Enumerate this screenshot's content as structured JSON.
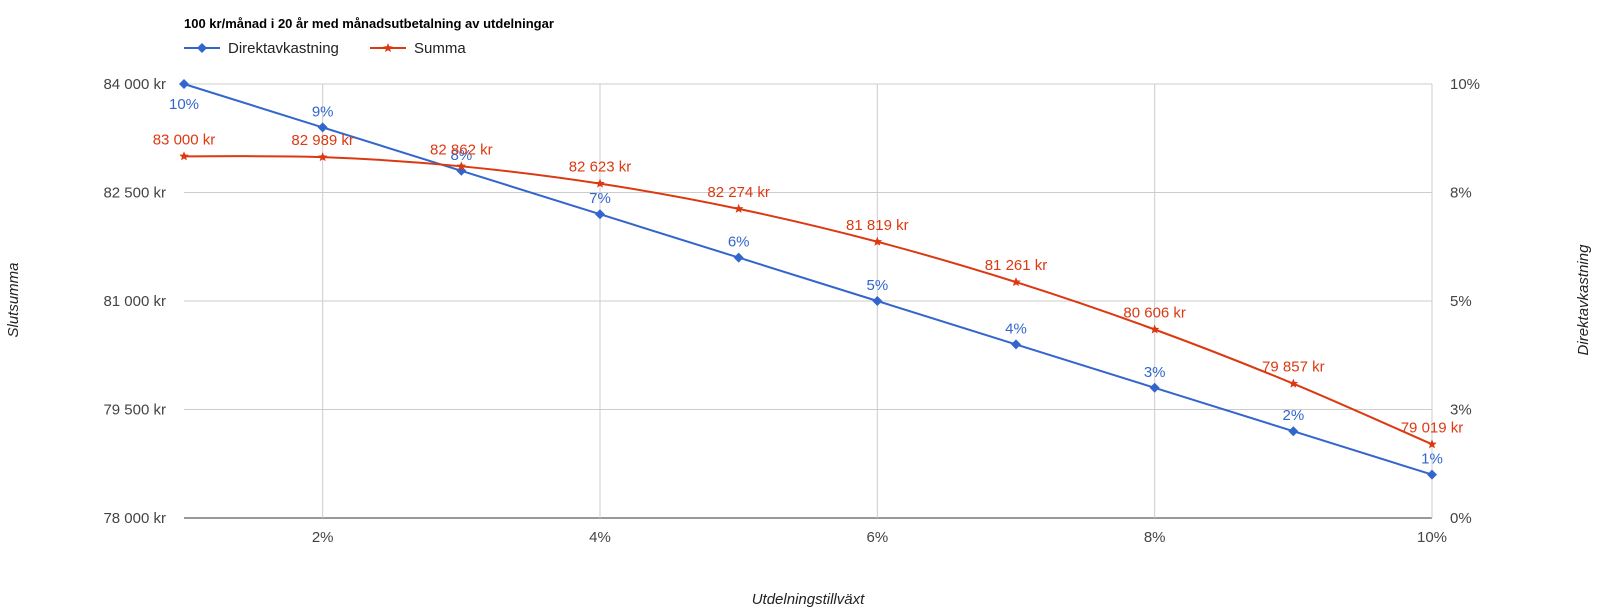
{
  "chart_data": {
    "type": "line",
    "title": "100 kr/månad i 20 år med månadsutbetalning av utdelningar",
    "xlabel": "Utdelningstillväxt",
    "ylabel_left": "Slutsumma",
    "ylabel_right": "Direktavkastning",
    "x": [
      1,
      2,
      3,
      4,
      5,
      6,
      7,
      8,
      9,
      10
    ],
    "xlim": [
      1,
      10
    ],
    "x_ticks": [
      2,
      4,
      6,
      8,
      10
    ],
    "x_tick_labels": [
      "2%",
      "4%",
      "6%",
      "8%",
      "10%"
    ],
    "ylim_left": [
      78000,
      84000
    ],
    "y_ticks_left": [
      78000,
      79500,
      81000,
      82500,
      84000
    ],
    "y_tick_labels_left": [
      "78 000 kr",
      "79 500 kr",
      "81 000 kr",
      "82 500 kr",
      "84 000 kr"
    ],
    "ylim_right": [
      0,
      10
    ],
    "y_ticks_right": [
      0,
      2.5,
      5,
      7.5,
      10
    ],
    "y_tick_labels_right": [
      "0%",
      "3%",
      "5%",
      "8%",
      "10%"
    ],
    "grid": true,
    "legend_position": "top-left",
    "series": [
      {
        "name": "Direktavkastning",
        "axis": "right",
        "color": "#3366cc",
        "marker": "diamond",
        "values": [
          10,
          9,
          8,
          7,
          6,
          5,
          4,
          3,
          2,
          1
        ],
        "labels": [
          "10%",
          "9%",
          "8%",
          "7%",
          "6%",
          "5%",
          "4%",
          "3%",
          "2%",
          "1%"
        ]
      },
      {
        "name": "Summa",
        "axis": "left",
        "color": "#dc3912",
        "marker": "star",
        "values": [
          83000,
          82989,
          82862,
          82623,
          82274,
          81819,
          81261,
          80606,
          79857,
          79019
        ],
        "labels": [
          "83 000 kr",
          "82 989 kr",
          "82 862 kr",
          "82 623 kr",
          "82 274 kr",
          "81 819 kr",
          "81 261 kr",
          "80 606 kr",
          "79 857 kr",
          "79 019 kr"
        ]
      }
    ]
  }
}
